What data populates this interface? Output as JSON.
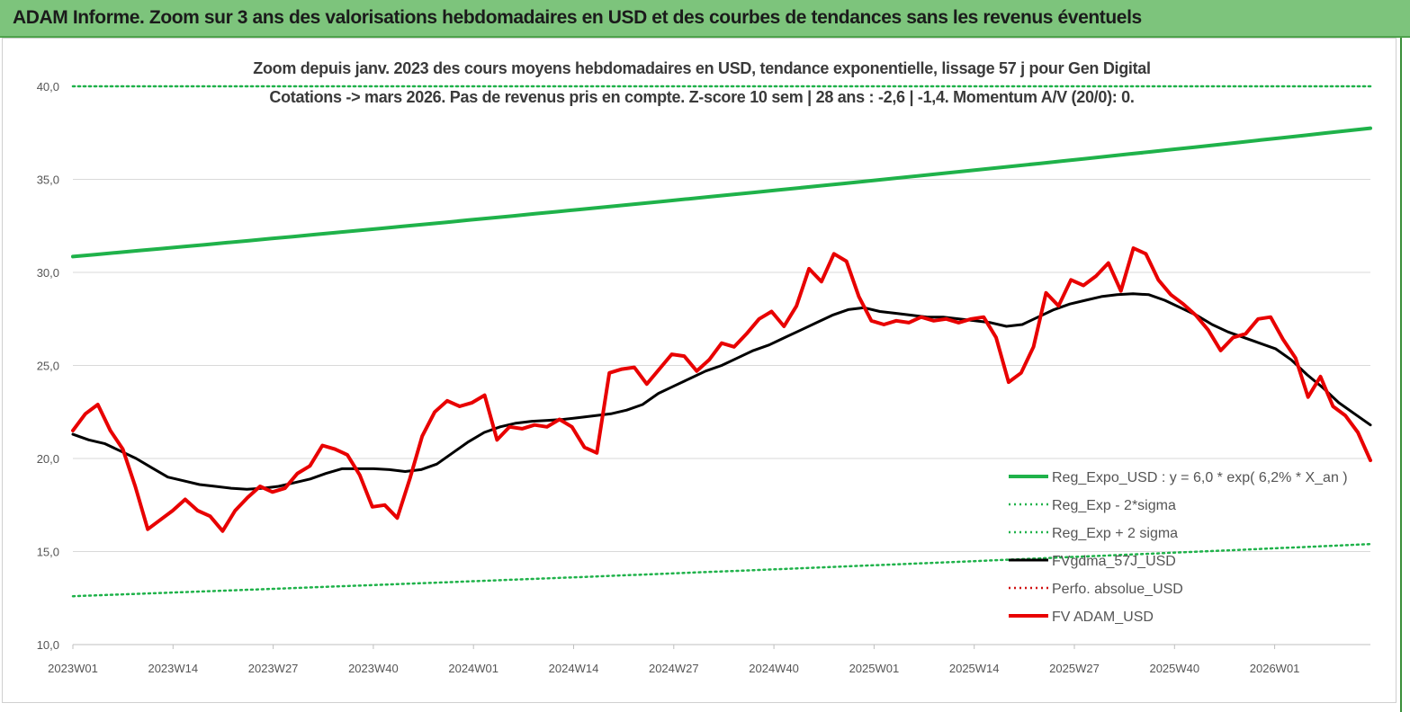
{
  "header": {
    "title": "ADAM Informe. Zoom sur 3 ans des valorisations hebdomadaires en USD et des courbes de tendances sans les revenus éventuels"
  },
  "chart_data": {
    "type": "line",
    "subtitle_line1": "Zoom depuis janv. 2023 des cours moyens hebdomadaires en USD, tendance exponentielle, lissage 57 j pour Gen Digital",
    "subtitle_line2": "Cotations -> mars 2026. Pas de revenus pris en compte. Z-score 10 sem | 28 ans : -2,6 | -1,4. Momentum A/V (20/0): 0.",
    "ylim": [
      10,
      40
    ],
    "yticks": [
      "10,0",
      "15,0",
      "20,0",
      "25,0",
      "30,0",
      "35,0",
      "40,0"
    ],
    "xticks": [
      "2023W01",
      "2023W14",
      "2023W27",
      "2023W40",
      "2024W01",
      "2024W14",
      "2024W27",
      "2024W40",
      "2025W01",
      "2025W14",
      "2025W27",
      "2025W40",
      "2026W01"
    ],
    "grid": "horizontal",
    "legend_position": "bottom-right",
    "series": [
      {
        "name": "Reg_Expo_USD : y = 6,0 * exp( 6,2% *  X_an )",
        "color": "#1fb24a",
        "style": "solid-thick",
        "start": 30.85,
        "end": 37.75
      },
      {
        "name": "Reg_Exp - 2*sigma",
        "color": "#1fb24a",
        "style": "dotted",
        "start": 12.6,
        "end": 15.4
      },
      {
        "name": "Reg_Exp + 2 sigma",
        "color": "#1fb24a",
        "style": "dotted",
        "start": 40.0,
        "end": 40.0
      },
      {
        "name": "FVgdma_57J_USD",
        "color": "#000000",
        "style": "solid",
        "values": [
          21.3,
          21.0,
          20.8,
          20.4,
          20.0,
          19.5,
          19.0,
          18.8,
          18.6,
          18.5,
          18.4,
          18.35,
          18.4,
          18.5,
          18.7,
          18.9,
          19.2,
          19.45,
          19.45,
          19.45,
          19.4,
          19.3,
          19.4,
          19.7,
          20.3,
          20.9,
          21.4,
          21.7,
          21.9,
          22.0,
          22.05,
          22.1,
          22.2,
          22.3,
          22.4,
          22.6,
          22.9,
          23.5,
          23.9,
          24.3,
          24.7,
          25.0,
          25.4,
          25.8,
          26.1,
          26.5,
          26.9,
          27.3,
          27.7,
          28.0,
          28.1,
          27.9,
          27.8,
          27.7,
          27.6,
          27.6,
          27.5,
          27.4,
          27.3,
          27.1,
          27.2,
          27.6,
          28.0,
          28.3,
          28.5,
          28.7,
          28.8,
          28.85,
          28.8,
          28.5,
          28.1,
          27.7,
          27.2,
          26.8,
          26.5,
          26.2,
          25.9,
          25.3,
          24.5,
          23.8,
          23.0,
          22.4,
          21.8
        ]
      },
      {
        "name": "Perfo. absolue_USD",
        "color": "#d01010",
        "style": "dotted"
      },
      {
        "name": "FV ADAM_USD",
        "color": "#e80000",
        "style": "solid-thick",
        "values": [
          21.5,
          22.4,
          22.9,
          21.5,
          20.5,
          18.5,
          16.2,
          16.7,
          17.2,
          17.8,
          17.2,
          16.9,
          16.1,
          17.2,
          17.9,
          18.5,
          18.2,
          18.4,
          19.2,
          19.6,
          20.7,
          20.5,
          20.2,
          19.1,
          17.4,
          17.5,
          16.8,
          18.9,
          21.2,
          22.5,
          23.1,
          22.8,
          23.0,
          23.4,
          21.0,
          21.7,
          21.6,
          21.8,
          21.7,
          22.1,
          21.7,
          20.6,
          20.3,
          24.6,
          24.8,
          24.9,
          24.0,
          24.8,
          25.6,
          25.5,
          24.7,
          25.3,
          26.2,
          26.0,
          26.7,
          27.5,
          27.9,
          27.1,
          28.2,
          30.2,
          29.5,
          31.0,
          30.6,
          28.7,
          27.4,
          27.2,
          27.4,
          27.3,
          27.6,
          27.4,
          27.5,
          27.3,
          27.5,
          27.6,
          26.5,
          24.1,
          24.6,
          26.0,
          28.9,
          28.2,
          29.6,
          29.3,
          29.8,
          30.5,
          29.0,
          31.3,
          31.0,
          29.6,
          28.8,
          28.3,
          27.7,
          26.9,
          25.8,
          26.5,
          26.7,
          27.5,
          27.6,
          26.4,
          25.4,
          23.3,
          24.4,
          22.8,
          22.3,
          21.4,
          19.9
        ]
      }
    ]
  }
}
